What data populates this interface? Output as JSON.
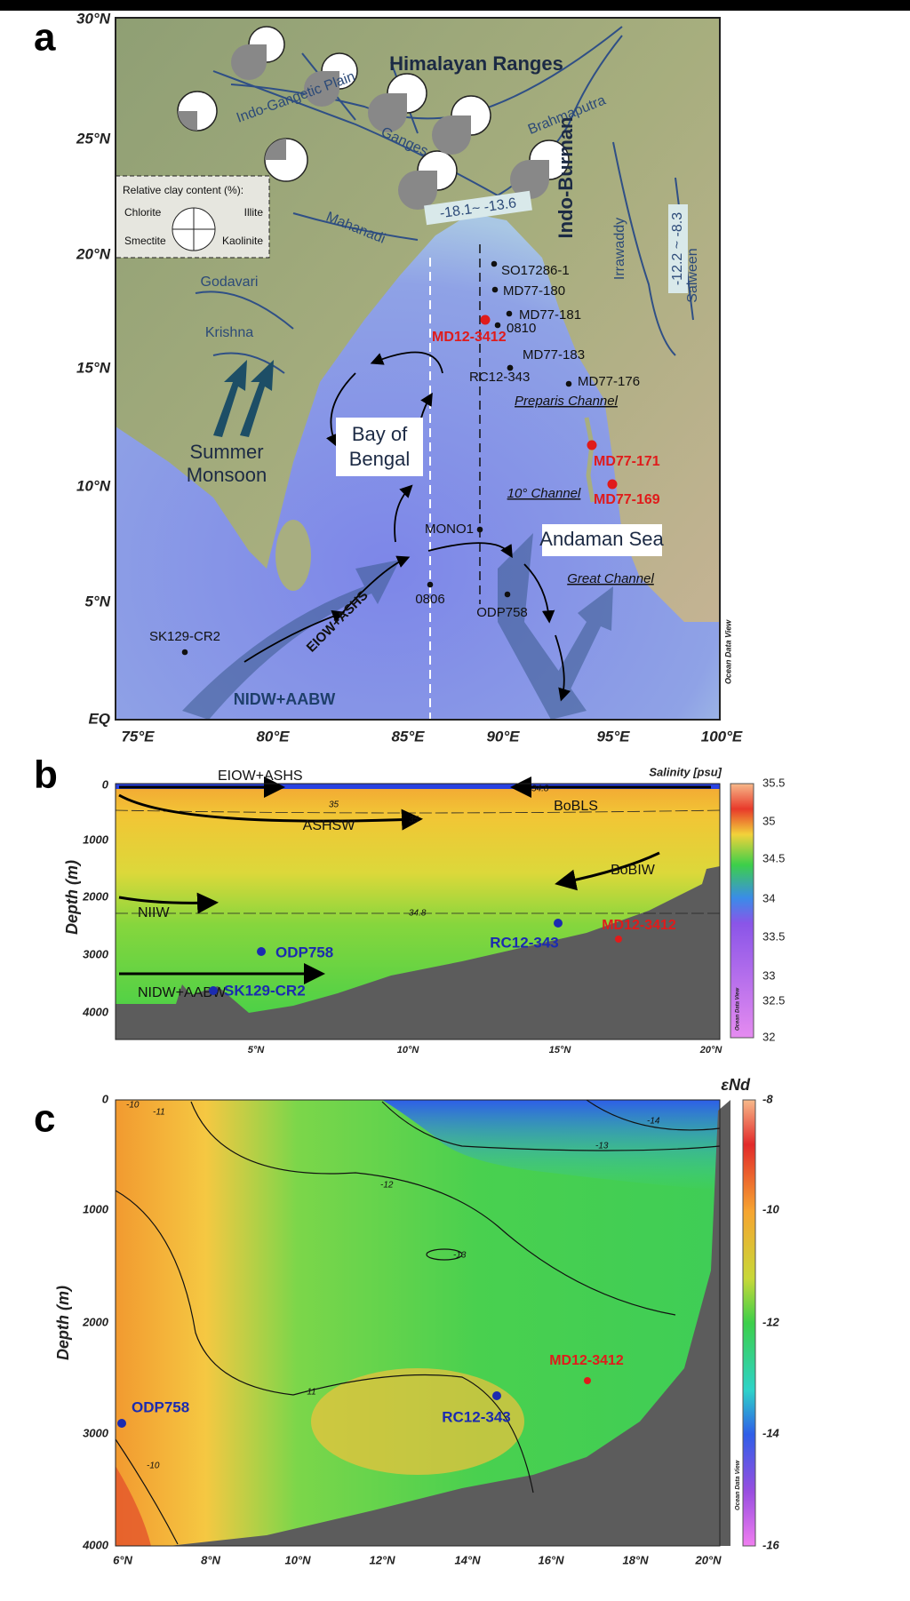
{
  "panel_a": {
    "label": "a",
    "lat_ticks": [
      "30°N",
      "25°N",
      "20°N",
      "15°N",
      "10°N",
      "5°N",
      "EQ"
    ],
    "lon_ticks": [
      "75°E",
      "80°E",
      "85°E",
      "90°E",
      "95°E",
      "100°E"
    ],
    "regions": [
      "Himalayan Ranges",
      "Indo-Gangetic Plain",
      "Ganges",
      "Brahmaputra",
      "Indo-Burman",
      "Irrawaddy",
      "Salween",
      "Mahanadi",
      "Godavari",
      "Krishna"
    ],
    "end_ranges": [
      "-18.1~ -13.6",
      "-12.2 ~ -8.3"
    ],
    "legend": {
      "title": "Relative clay content (%):",
      "items": [
        "Chlorite",
        "Illite",
        "Smectite",
        "Kaolinite"
      ]
    },
    "water_labels": [
      "Summer",
      "Monsoon",
      "Bay of",
      "Bengal",
      "Andaman Sea",
      "Preparis Channel",
      "10° Channel",
      "Great Channel",
      "EIOW+ASHS",
      "NIDW+AABW"
    ],
    "sites": [
      {
        "name": "SO17286-1",
        "color": "black"
      },
      {
        "name": "MD77-180",
        "color": "black"
      },
      {
        "name": "MD77-181",
        "color": "black"
      },
      {
        "name": "0810",
        "color": "black"
      },
      {
        "name": "MD12-3412",
        "color": "red"
      },
      {
        "name": "MD77-183",
        "color": "black"
      },
      {
        "name": "RC12-343",
        "color": "black"
      },
      {
        "name": "MD77-176",
        "color": "black"
      },
      {
        "name": "MD77-171",
        "color": "red"
      },
      {
        "name": "MD77-169",
        "color": "red"
      },
      {
        "name": "MONO1",
        "color": "black"
      },
      {
        "name": "0806",
        "color": "black"
      },
      {
        "name": "ODP758",
        "color": "black"
      },
      {
        "name": "SK129-CR2",
        "color": "black"
      }
    ],
    "credit": "Ocean Data View"
  },
  "panel_b": {
    "label": "b",
    "y_title": "Depth (m)",
    "depth_ticks": [
      0,
      1000,
      2000,
      3000,
      4000
    ],
    "lat_ticks": [
      "5°N",
      "10°N",
      "15°N",
      "20°N"
    ],
    "colorbar_title": "Salinity [psu]",
    "colorbar_ticks": [
      35.5,
      35,
      34.5,
      34,
      33.5,
      33,
      32.5,
      32
    ],
    "water_masses": [
      "EIOW+ASHS",
      "BoBLS",
      "ASHSW",
      "BoBIW",
      "NIIW",
      "NIDW+AABW"
    ],
    "contour_labels": [
      "35",
      "34.8",
      "35",
      "34.8"
    ],
    "sites": [
      {
        "name": "MD12-3412",
        "color": "red"
      },
      {
        "name": "RC12-343",
        "color": "blue"
      },
      {
        "name": "ODP758",
        "color": "blue"
      },
      {
        "name": "SK129-CR2",
        "color": "blue"
      }
    ],
    "credit": "Ocean Data View"
  },
  "panel_c": {
    "label": "c",
    "y_title": "Depth (m)",
    "depth_ticks": [
      0,
      1000,
      2000,
      3000,
      4000
    ],
    "lat_ticks": [
      "6°N",
      "8°N",
      "10°N",
      "12°N",
      "14°N",
      "16°N",
      "18°N",
      "20°N"
    ],
    "colorbar_title": "εNd",
    "colorbar_ticks": [
      -8,
      -10,
      -12,
      -14,
      -16
    ],
    "contour_labels": [
      "-10",
      "-11",
      "-14",
      "-13",
      "-13",
      "-12",
      "-11",
      "-10"
    ],
    "sites": [
      {
        "name": "ODP758",
        "color": "blue"
      },
      {
        "name": "RC12-343",
        "color": "blue"
      },
      {
        "name": "MD12-3412",
        "color": "red"
      }
    ],
    "credit": "Ocean Data View"
  }
}
